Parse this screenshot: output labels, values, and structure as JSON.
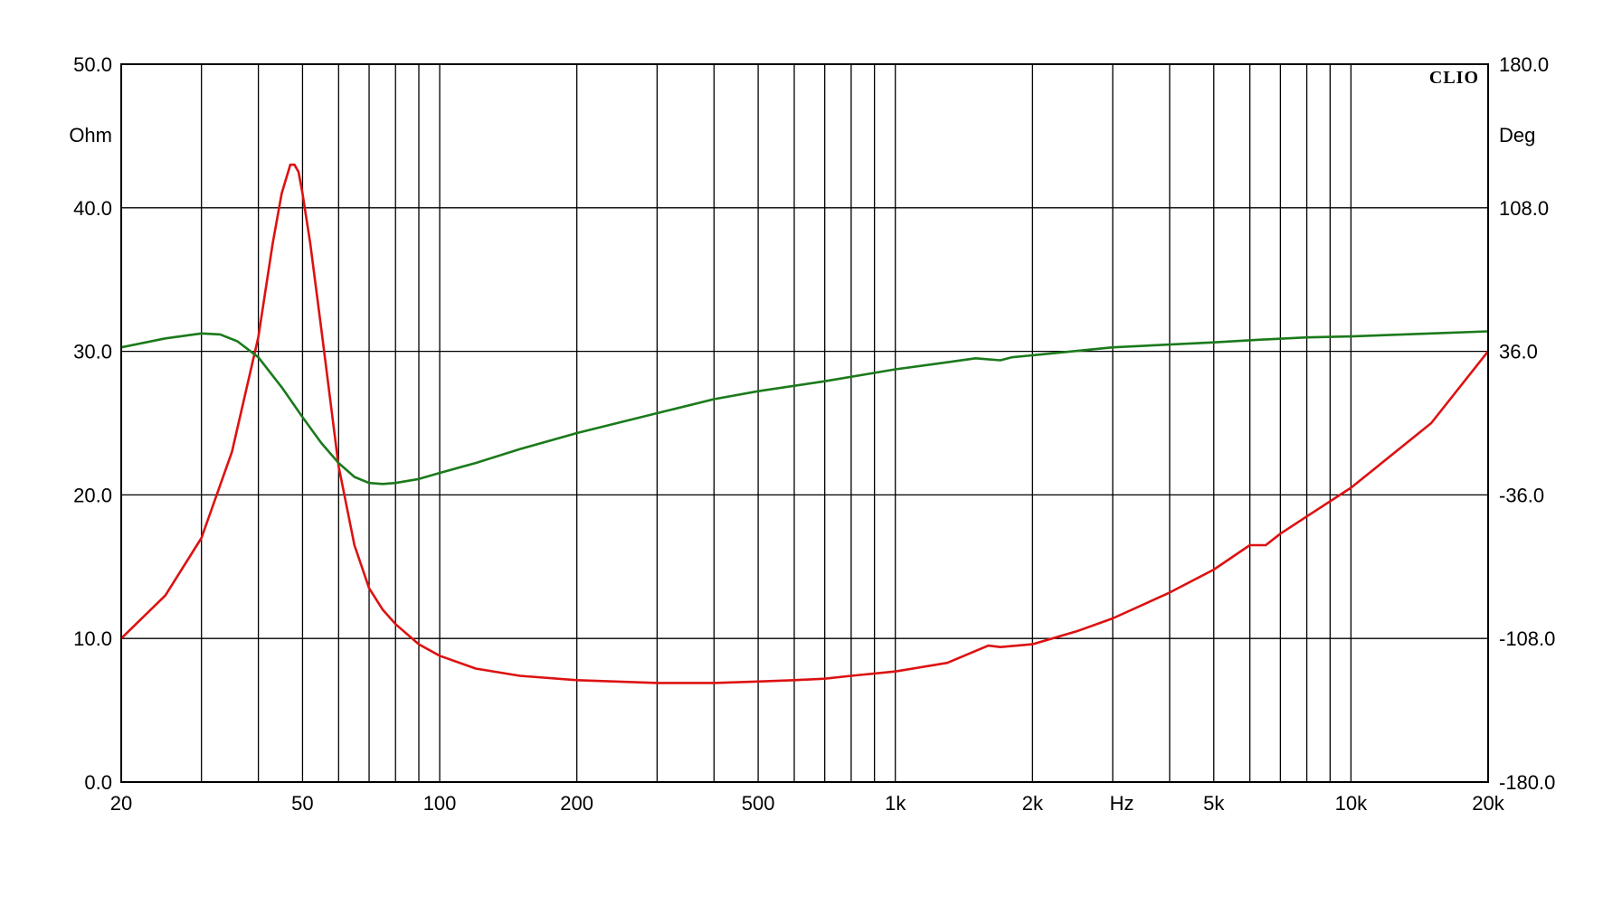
{
  "chart_data": {
    "type": "line",
    "logo": "CLIO",
    "x_scale": "log",
    "xlim": [
      20,
      20000
    ],
    "x_unit_label": "Hz",
    "x_ticks": [
      {
        "value": 20,
        "label": "20"
      },
      {
        "value": 50,
        "label": "50"
      },
      {
        "value": 100,
        "label": "100"
      },
      {
        "value": 200,
        "label": "200"
      },
      {
        "value": 500,
        "label": "500"
      },
      {
        "value": 1000,
        "label": "1k"
      },
      {
        "value": 2000,
        "label": "2k"
      },
      {
        "value": 5000,
        "label": "5k"
      },
      {
        "value": 10000,
        "label": "10k"
      },
      {
        "value": 20000,
        "label": "20k"
      }
    ],
    "x_unit_position_value": 3000,
    "x_gridlines": [
      20,
      30,
      40,
      50,
      60,
      70,
      80,
      90,
      100,
      200,
      300,
      400,
      500,
      600,
      700,
      800,
      900,
      1000,
      2000,
      3000,
      4000,
      5000,
      6000,
      7000,
      8000,
      9000,
      10000,
      20000
    ],
    "y_left": {
      "unit": "Ohm",
      "ylim": [
        0,
        50
      ],
      "ticks": [
        "0.0",
        "10.0",
        "20.0",
        "30.0",
        "40.0",
        "50.0"
      ],
      "tick_values": [
        0,
        10,
        20,
        30,
        40,
        50
      ]
    },
    "y_right": {
      "unit": "Deg",
      "ylim": [
        -180,
        180
      ],
      "ticks": [
        "-180.0",
        "-108.0",
        "-36.0",
        "36.0",
        "108.0",
        "180.0"
      ],
      "tick_values": [
        -180,
        -108,
        -36,
        36,
        108,
        180
      ]
    },
    "grid": true,
    "series": [
      {
        "axis": "left",
        "color": "#dd1111",
        "x": [
          20,
          25,
          30,
          35,
          40,
          43,
          45,
          47,
          48,
          49,
          50,
          52,
          55,
          60,
          65,
          70,
          75,
          80,
          90,
          100,
          120,
          150,
          200,
          300,
          400,
          500,
          600,
          700,
          800,
          1000,
          1300,
          1600,
          1700,
          2000,
          2500,
          3000,
          4000,
          5000,
          6000,
          6500,
          7000,
          8000,
          10000,
          15000,
          20000
        ],
        "values": [
          10.0,
          13.0,
          17.0,
          23.0,
          31.0,
          37.5,
          41.0,
          43.0,
          43.0,
          42.5,
          41.0,
          37.5,
          31.5,
          22.0,
          16.5,
          13.5,
          12.0,
          11.0,
          9.6,
          8.8,
          7.9,
          7.4,
          7.1,
          6.9,
          6.9,
          7.0,
          7.1,
          7.2,
          7.4,
          7.7,
          8.3,
          9.5,
          9.4,
          9.6,
          10.5,
          11.4,
          13.2,
          14.8,
          16.5,
          16.5,
          17.3,
          18.5,
          20.5,
          25.0,
          30.0
        ]
      },
      {
        "axis": "right",
        "color": "#1b7a1b",
        "x": [
          20,
          25,
          30,
          33,
          36,
          40,
          45,
          50,
          55,
          60,
          65,
          70,
          75,
          80,
          90,
          100,
          120,
          150,
          200,
          300,
          400,
          500,
          700,
          1000,
          1300,
          1500,
          1600,
          1700,
          1800,
          2000,
          3000,
          5000,
          6500,
          8000,
          10000,
          15000,
          20000
        ],
        "values": [
          38.0,
          42.5,
          45.0,
          44.5,
          41.0,
          33.0,
          18.0,
          3.0,
          -10.0,
          -20.0,
          -27.0,
          -30.0,
          -30.5,
          -30.0,
          -28.0,
          -25.0,
          -20.0,
          -13.0,
          -5.0,
          5.0,
          12.0,
          16.0,
          21.0,
          27.0,
          30.5,
          32.5,
          32.0,
          31.5,
          33.0,
          34.0,
          38.0,
          40.5,
          42.0,
          43.0,
          43.5,
          45.0,
          46.0
        ]
      }
    ]
  }
}
